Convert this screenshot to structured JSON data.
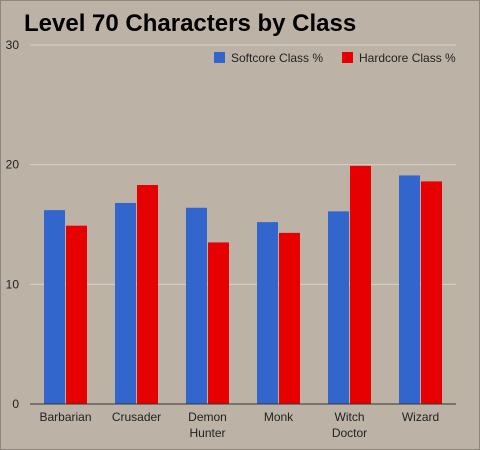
{
  "chart_data": {
    "type": "bar",
    "title": "Level 70 Characters by Class",
    "xlabel": "",
    "ylabel": "",
    "categories": [
      [
        "Barbarian"
      ],
      [
        "Crusader"
      ],
      [
        "Demon",
        "Hunter"
      ],
      [
        "Monk"
      ],
      [
        "Witch",
        "Doctor"
      ],
      [
        "Wizard"
      ]
    ],
    "series": [
      {
        "name": "Softcore Class %",
        "color": "#3366cc",
        "values": [
          16.2,
          16.8,
          16.4,
          15.2,
          16.1,
          19.1
        ]
      },
      {
        "name": "Hardcore Class %",
        "color": "#e60000",
        "values": [
          14.9,
          18.3,
          13.5,
          14.3,
          19.9,
          18.6
        ]
      }
    ],
    "ylim": [
      0,
      30
    ],
    "yticks": [
      0,
      10,
      20,
      30
    ],
    "grid": true,
    "legend_position": "top-right"
  }
}
